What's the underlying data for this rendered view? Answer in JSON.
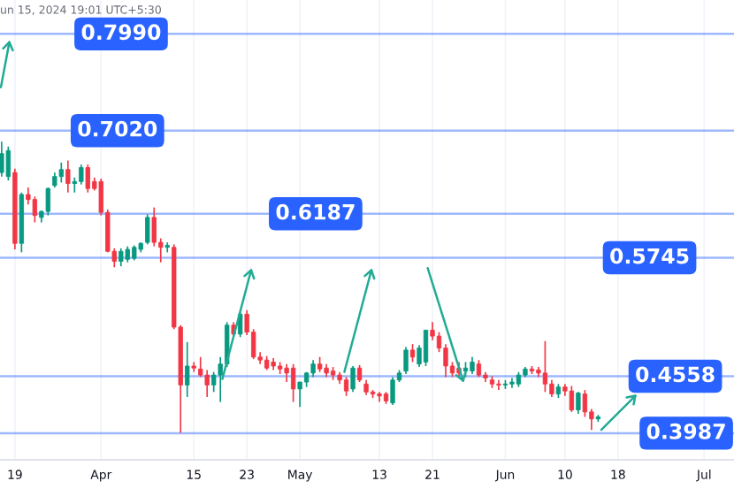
{
  "chart_data": {
    "type": "candlestick",
    "annotations": [
      "un 15, 2024 19:01 UTC+5:30"
    ],
    "x": [
      "2024-03-17",
      "2024-03-18",
      "2024-03-19",
      "2024-03-20",
      "2024-03-21",
      "2024-03-22",
      "2024-03-23",
      "2024-03-24",
      "2024-03-25",
      "2024-03-26",
      "2024-03-27",
      "2024-03-28",
      "2024-03-29",
      "2024-03-30",
      "2024-03-31",
      "2024-04-01",
      "2024-04-02",
      "2024-04-03",
      "2024-04-04",
      "2024-04-05",
      "2024-04-06",
      "2024-04-07",
      "2024-04-08",
      "2024-04-09",
      "2024-04-10",
      "2024-04-11",
      "2024-04-12",
      "2024-04-13",
      "2024-04-14",
      "2024-04-15",
      "2024-04-16",
      "2024-04-17",
      "2024-04-18",
      "2024-04-19",
      "2024-04-20",
      "2024-04-21",
      "2024-04-22",
      "2024-04-23",
      "2024-04-24",
      "2024-04-25",
      "2024-04-26",
      "2024-04-27",
      "2024-04-28",
      "2024-04-29",
      "2024-04-30",
      "2024-05-01",
      "2024-05-02",
      "2024-05-03",
      "2024-05-04",
      "2024-05-05",
      "2024-05-06",
      "2024-05-07",
      "2024-05-08",
      "2024-05-09",
      "2024-05-10",
      "2024-05-11",
      "2024-05-12",
      "2024-05-13",
      "2024-05-14",
      "2024-05-15",
      "2024-05-16",
      "2024-05-17",
      "2024-05-18",
      "2024-05-19",
      "2024-05-20",
      "2024-05-21",
      "2024-05-22",
      "2024-05-23",
      "2024-05-24",
      "2024-05-25",
      "2024-05-26",
      "2024-05-27",
      "2024-05-28",
      "2024-05-29",
      "2024-05-30",
      "2024-05-31",
      "2024-06-01",
      "2024-06-02",
      "2024-06-03",
      "2024-06-04",
      "2024-06-05",
      "2024-06-06",
      "2024-06-07",
      "2024-06-08",
      "2024-06-09",
      "2024-06-10",
      "2024-06-11",
      "2024-06-12",
      "2024-06-13",
      "2024-06-14",
      "2024-06-15"
    ],
    "ohlc": [
      [
        0.66,
        0.691,
        0.656,
        0.679
      ],
      [
        0.656,
        0.686,
        0.652,
        0.682
      ],
      [
        0.66,
        0.664,
        0.583,
        0.589
      ],
      [
        0.589,
        0.64,
        0.58,
        0.638
      ],
      [
        0.638,
        0.645,
        0.628,
        0.633
      ],
      [
        0.633,
        0.636,
        0.61,
        0.617
      ],
      [
        0.615,
        0.622,
        0.61,
        0.621
      ],
      [
        0.621,
        0.645,
        0.617,
        0.644
      ],
      [
        0.647,
        0.66,
        0.645,
        0.656
      ],
      [
        0.656,
        0.67,
        0.65,
        0.663
      ],
      [
        0.663,
        0.672,
        0.64,
        0.649
      ],
      [
        0.649,
        0.655,
        0.64,
        0.651
      ],
      [
        0.651,
        0.668,
        0.648,
        0.665
      ],
      [
        0.665,
        0.668,
        0.64,
        0.644
      ],
      [
        0.651,
        0.655,
        0.642,
        0.644
      ],
      [
        0.651,
        0.654,
        0.617,
        0.62
      ],
      [
        0.62,
        0.623,
        0.58,
        0.581
      ],
      [
        0.581,
        0.584,
        0.565,
        0.571
      ],
      [
        0.571,
        0.584,
        0.566,
        0.581
      ],
      [
        0.573,
        0.586,
        0.57,
        0.583
      ],
      [
        0.574,
        0.587,
        0.572,
        0.585
      ],
      [
        0.583,
        0.59,
        0.58,
        0.589
      ],
      [
        0.59,
        0.618,
        0.588,
        0.615
      ],
      [
        0.615,
        0.625,
        0.586,
        0.59
      ],
      [
        0.59,
        0.594,
        0.57,
        0.585
      ],
      [
        0.585,
        0.59,
        0.58,
        0.587
      ],
      [
        0.585,
        0.588,
        0.503,
        0.505
      ],
      [
        0.505,
        0.507,
        0.399,
        0.447
      ],
      [
        0.447,
        0.49,
        0.435,
        0.466
      ],
      [
        0.466,
        0.47,
        0.46,
        0.464
      ],
      [
        0.463,
        0.475,
        0.455,
        0.457
      ],
      [
        0.457,
        0.462,
        0.435,
        0.447
      ],
      [
        0.447,
        0.46,
        0.44,
        0.457
      ],
      [
        0.457,
        0.475,
        0.43,
        0.468
      ],
      [
        0.468,
        0.51,
        0.465,
        0.507
      ],
      [
        0.507,
        0.51,
        0.495,
        0.498
      ],
      [
        0.498,
        0.52,
        0.495,
        0.518
      ],
      [
        0.518,
        0.522,
        0.497,
        0.5
      ],
      [
        0.5,
        0.503,
        0.473,
        0.475
      ],
      [
        0.475,
        0.48,
        0.468,
        0.472
      ],
      [
        0.472,
        0.476,
        0.462,
        0.464
      ],
      [
        0.47,
        0.474,
        0.462,
        0.466
      ],
      [
        0.466,
        0.47,
        0.458,
        0.463
      ],
      [
        0.464,
        0.468,
        0.45,
        0.459
      ],
      [
        0.464,
        0.468,
        0.43,
        0.443
      ],
      [
        0.443,
        0.45,
        0.425,
        0.45
      ],
      [
        0.45,
        0.46,
        0.445,
        0.459
      ],
      [
        0.459,
        0.472,
        0.455,
        0.468
      ],
      [
        0.468,
        0.475,
        0.46,
        0.463
      ],
      [
        0.464,
        0.468,
        0.455,
        0.459
      ],
      [
        0.461,
        0.465,
        0.452,
        0.457
      ],
      [
        0.457,
        0.46,
        0.448,
        0.452
      ],
      [
        0.452,
        0.455,
        0.436,
        0.441
      ],
      [
        0.443,
        0.466,
        0.44,
        0.464
      ],
      [
        0.464,
        0.467,
        0.45,
        0.452
      ],
      [
        0.448,
        0.452,
        0.437,
        0.44
      ],
      [
        0.44,
        0.442,
        0.434,
        0.438
      ],
      [
        0.438,
        0.44,
        0.43,
        0.436
      ],
      [
        0.438,
        0.44,
        0.428,
        0.431
      ],
      [
        0.429,
        0.455,
        0.427,
        0.452
      ],
      [
        0.452,
        0.462,
        0.45,
        0.459
      ],
      [
        0.461,
        0.485,
        0.458,
        0.482
      ],
      [
        0.482,
        0.488,
        0.47,
        0.475
      ],
      [
        0.468,
        0.487,
        0.465,
        0.484
      ],
      [
        0.47,
        0.502,
        0.466,
        0.502
      ],
      [
        0.502,
        0.51,
        0.492,
        0.496
      ],
      [
        0.496,
        0.5,
        0.48,
        0.484
      ],
      [
        0.484,
        0.488,
        0.455,
        0.466
      ],
      [
        0.466,
        0.47,
        0.455,
        0.459
      ],
      [
        0.464,
        0.47,
        0.455,
        0.459
      ],
      [
        0.461,
        0.47,
        0.455,
        0.464
      ],
      [
        0.461,
        0.475,
        0.458,
        0.47
      ],
      [
        0.468,
        0.472,
        0.455,
        0.457
      ],
      [
        0.457,
        0.46,
        0.45,
        0.454
      ],
      [
        0.452,
        0.456,
        0.444,
        0.448
      ],
      [
        0.448,
        0.452,
        0.442,
        0.447
      ],
      [
        0.447,
        0.452,
        0.443,
        0.448
      ],
      [
        0.448,
        0.454,
        0.444,
        0.45
      ],
      [
        0.448,
        0.46,
        0.445,
        0.457
      ],
      [
        0.457,
        0.465,
        0.455,
        0.463
      ],
      [
        0.463,
        0.466,
        0.458,
        0.461
      ],
      [
        0.462,
        0.465,
        0.455,
        0.459
      ],
      [
        0.459,
        0.491,
        0.44,
        0.448
      ],
      [
        0.448,
        0.452,
        0.435,
        0.438
      ],
      [
        0.438,
        0.448,
        0.434,
        0.445
      ],
      [
        0.445,
        0.448,
        0.436,
        0.441
      ],
      [
        0.441,
        0.446,
        0.42,
        0.422
      ],
      [
        0.422,
        0.44,
        0.418,
        0.439
      ],
      [
        0.438,
        0.442,
        0.415,
        0.42
      ],
      [
        0.42,
        0.423,
        0.402,
        0.413
      ],
      [
        0.413,
        0.417,
        0.41,
        0.415
      ]
    ],
    "colors": [
      "#089981",
      "#089981",
      "#f23645",
      "#089981",
      "#f23645",
      "#f23645",
      "#089981",
      "#089981",
      "#089981",
      "#089981",
      "#f23645",
      "#089981",
      "#089981",
      "#f23645",
      "#f23645",
      "#f23645",
      "#f23645",
      "#f23645",
      "#089981",
      "#089981",
      "#089981",
      "#089981",
      "#089981",
      "#f23645",
      "#f23645",
      "#089981",
      "#f23645",
      "#f23645",
      "#089981",
      "#f23645",
      "#f23645",
      "#f23645",
      "#089981",
      "#089981",
      "#089981",
      "#f23645",
      "#089981",
      "#f23645",
      "#f23645",
      "#f23645",
      "#f23645",
      "#f23645",
      "#f23645",
      "#f23645",
      "#f23645",
      "#089981",
      "#089981",
      "#089981",
      "#f23645",
      "#f23645",
      "#f23645",
      "#f23645",
      "#f23645",
      "#089981",
      "#f23645",
      "#f23645",
      "#f23645",
      "#f23645",
      "#f23645",
      "#089981",
      "#089981",
      "#089981",
      "#f23645",
      "#089981",
      "#089981",
      "#f23645",
      "#f23645",
      "#f23645",
      "#f23645",
      "#f23645",
      "#089981",
      "#089981",
      "#f23645",
      "#f23645",
      "#f23645",
      "#f23645",
      "#089981",
      "#089981",
      "#089981",
      "#089981",
      "#f23645",
      "#f23645",
      "#f23645",
      "#f23645",
      "#089981",
      "#f23645",
      "#f23645",
      "#089981",
      "#f23645",
      "#f23645",
      "#089981"
    ],
    "xlim": [
      "2024-03-16T18:00",
      "2024-07-05T12:00"
    ],
    "xticks": [
      {
        "value": "2024-03-19",
        "label": "19"
      },
      {
        "value": "2024-04-01",
        "label": "Apr"
      },
      {
        "value": "2024-04-15",
        "label": "15"
      },
      {
        "value": "2024-04-23",
        "label": "23"
      },
      {
        "value": "2024-05-01",
        "label": "May"
      },
      {
        "value": "2024-05-13",
        "label": "13"
      },
      {
        "value": "2024-05-21",
        "label": "21"
      },
      {
        "value": "2024-06-01",
        "label": "Jun"
      },
      {
        "value": "2024-06-10",
        "label": "10"
      },
      {
        "value": "2024-06-18",
        "label": "18"
      },
      {
        "value": "2024-07-01",
        "label": "Jul"
      }
    ],
    "ylim": [
      0.372,
      0.833
    ],
    "tick_labels": "x",
    "grid": "x",
    "ref_lines": [
      {
        "axis": "y",
        "value": 0.799,
        "label": "0.7990",
        "color": "#2962ff"
      },
      {
        "axis": "y",
        "value": 0.702,
        "label": "0.7020",
        "color": "#2962ff"
      },
      {
        "axis": "y",
        "value": 0.6187,
        "label": "0.6187",
        "color": "#2962ff"
      },
      {
        "axis": "y",
        "value": 0.5745,
        "label": "0.5745",
        "color": "#2962ff"
      },
      {
        "axis": "y",
        "value": 0.4558,
        "label": "0.4558",
        "color": "#2962ff"
      },
      {
        "axis": "y",
        "value": 0.3987,
        "label": "0.3987",
        "color": "#2962ff"
      }
    ]
  }
}
